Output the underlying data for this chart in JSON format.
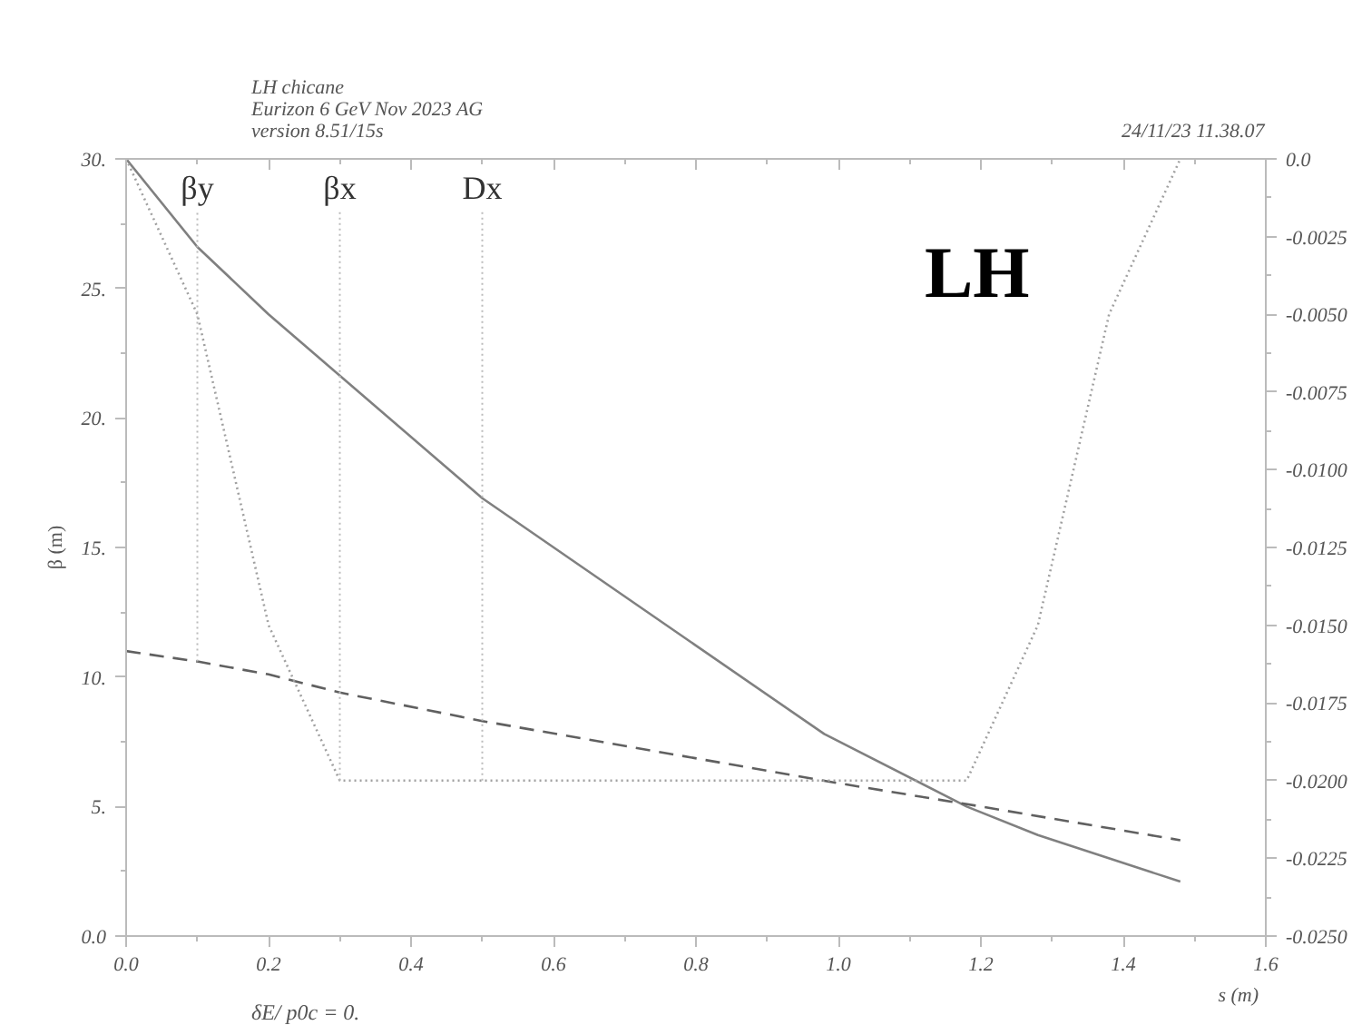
{
  "chart_data": {
    "type": "line",
    "title": "LH chicane",
    "subtitle": "Eurizon 6 GeV Nov 2023 AG",
    "ylabel": "β (m)",
    "xlabel": "s (m)",
    "annotations": [
      "version 8.51/15s",
      "24/11/23  11.38.07",
      "LH",
      "δE/ p0c  =  0.",
      {
        "text": "βy",
        "x": 0.1,
        "y": 10.6
      },
      {
        "text": "βx",
        "x": 0.3,
        "y": 6
      },
      {
        "text": "Dx",
        "x": 0.5,
        "y": 6
      }
    ],
    "series": [
      {
        "color": "#808080",
        "line_style": "solid",
        "x": [
          0,
          0.1,
          0.2,
          0.5,
          0.98,
          1.18,
          1.28,
          1.48
        ],
        "values": [
          30,
          26.6,
          24.0,
          16.9,
          7.8,
          5.0,
          3.9,
          2.1
        ]
      },
      {
        "color": "#606060",
        "line_style": "dashed",
        "x": [
          0,
          0.1,
          0.2,
          0.3,
          0.5,
          1.0,
          1.2,
          1.48
        ],
        "values": [
          11,
          10.6,
          10.1,
          9.4,
          8.3,
          5.9,
          5.0,
          3.7
        ]
      },
      {
        "color": "#a0a0a0",
        "line_style": "dotted",
        "axis": "y2",
        "x": [
          0,
          0.1,
          0.2,
          0.3,
          1.18,
          1.28,
          1.38,
          1.48
        ],
        "values": [
          0,
          -0.005,
          -0.015,
          -0.02,
          -0.02,
          -0.015,
          -0.005,
          0
        ]
      }
    ],
    "xlim": [
      0,
      1.6
    ],
    "xticks": [
      {
        "value": 0,
        "label": "0.0"
      },
      {
        "value": 0.2,
        "label": "0.2"
      },
      {
        "value": 0.4,
        "label": "0.4"
      },
      {
        "value": 0.6,
        "label": "0.6"
      },
      {
        "value": 0.8,
        "label": "0.8"
      },
      {
        "value": 1.0,
        "label": "1.0"
      },
      {
        "value": 1.2,
        "label": "1.2"
      },
      {
        "value": 1.4,
        "label": "1.4"
      },
      {
        "value": 1.6,
        "label": "1.6"
      }
    ],
    "ylim": [
      0,
      30
    ],
    "yticks": [
      {
        "value": 0,
        "label": "0.0"
      },
      {
        "value": 5,
        "label": "5."
      },
      {
        "value": 10,
        "label": "10."
      },
      {
        "value": 15,
        "label": "15."
      },
      {
        "value": 20,
        "label": "20."
      },
      {
        "value": 25,
        "label": "25."
      },
      {
        "value": 30,
        "label": "30."
      }
    ],
    "y2lim": [
      -0.025,
      0
    ],
    "y2ticks": [
      {
        "value": -0.025,
        "label": "-0.0250"
      },
      {
        "value": -0.0225,
        "label": "-0.0225"
      },
      {
        "value": -0.02,
        "label": "-0.0200"
      },
      {
        "value": -0.0175,
        "label": "-0.0175"
      },
      {
        "value": -0.015,
        "label": "-0.0150"
      },
      {
        "value": -0.0125,
        "label": "-0.0125"
      },
      {
        "value": -0.01,
        "label": "-0.0100"
      },
      {
        "value": -0.0075,
        "label": "-0.0075"
      },
      {
        "value": -0.005,
        "label": "-0.0050"
      },
      {
        "value": -0.0025,
        "label": "-0.0025"
      },
      {
        "value": 0,
        "label": "0.0"
      }
    ],
    "grid": false
  }
}
